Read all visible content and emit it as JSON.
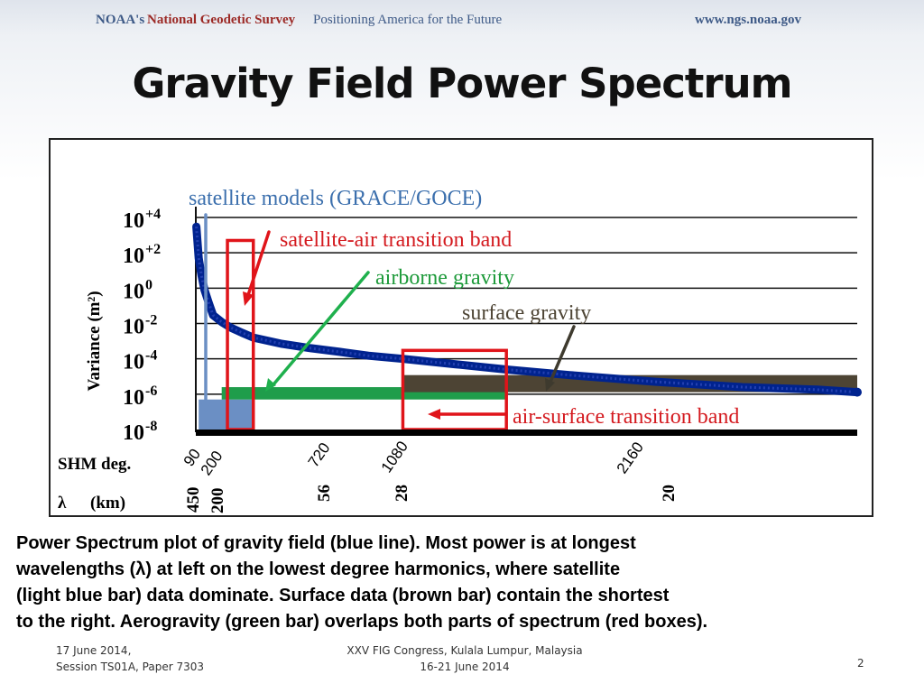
{
  "header": {
    "org": "NOAA's",
    "survey": "National Geodetic Survey",
    "tagline": "Positioning America for the Future",
    "url": "www.ngs.noaa.gov"
  },
  "title": "Gravity Field Power Spectrum",
  "chart_data": {
    "type": "line",
    "title": "",
    "ylabel": "Variance (m²)",
    "yscale": "log",
    "ylim": [
      1e-08,
      10000.0
    ],
    "y_ticks": [
      {
        "base": "10",
        "exp": "+4"
      },
      {
        "base": "10",
        "exp": "+2"
      },
      {
        "base": "10",
        "exp": "0"
      },
      {
        "base": "10",
        "exp": "-2"
      },
      {
        "base": "10",
        "exp": "-4"
      },
      {
        "base": "10",
        "exp": "-6"
      },
      {
        "base": "10",
        "exp": "-8"
      }
    ],
    "xlim": [
      0,
      2300
    ],
    "x_axis_label": "SHM deg.",
    "x_ticks": [
      "90",
      "200",
      "720",
      "1080",
      "2160"
    ],
    "lambda_label": "λ",
    "lambda_unit": "(km)",
    "lambda_ticks": [
      "450",
      "200",
      "56",
      "28",
      "20"
    ],
    "grid": true,
    "series": [
      {
        "color": "#00238f",
        "x": [
          2,
          10,
          20,
          30,
          45,
          60,
          90,
          120,
          160,
          200,
          300,
          400,
          500,
          600,
          720,
          900,
          1080,
          1300,
          1600,
          1900,
          2160,
          2300
        ],
        "y": [
          3000,
          50,
          5,
          0.8,
          0.15,
          0.03,
          0.012,
          0.006,
          0.003,
          0.0016,
          0.0007,
          0.0004,
          0.00025,
          0.00015,
          0.0001,
          5e-05,
          2.5e-05,
          1.2e-05,
          5e-06,
          2.5e-06,
          1.8e-06,
          1.3e-06
        ]
      }
    ],
    "bands": [
      {
        "name": "satellite",
        "color": "#6b8fc4",
        "x_start": 10,
        "x_end": 200,
        "y_low": 1e-08,
        "y_high": 5e-07
      },
      {
        "name": "airborne",
        "color": "#1f9d4b",
        "x_start": 90,
        "x_end": 1080,
        "y_low": 5e-07,
        "y_high": 2.5e-06
      },
      {
        "name": "surface",
        "color": "#4d4434",
        "x_start": 720,
        "x_end": 2300,
        "y_low": 1.3e-06,
        "y_high": 1.2e-05
      }
    ],
    "boxes": [
      {
        "color": "#e0141a",
        "x_start": 110,
        "x_end": 200,
        "y_low": 1e-08,
        "y_high": 500
      },
      {
        "color": "#e0141a",
        "x_start": 720,
        "x_end": 1080,
        "y_low": 1e-08,
        "y_high": 0.0003
      }
    ],
    "annotations": {
      "satellite": {
        "text": "satellite models (GRACE/GOCE)",
        "color": "#3b6fad"
      },
      "transition1": {
        "text": "satellite-air transition band",
        "color": "#d41a1f"
      },
      "airborne": {
        "text": "airborne gravity",
        "color": "#1d9a3a"
      },
      "surface": {
        "text": "surface gravity",
        "color": "#4d4434"
      },
      "transition2": {
        "text": "air-surface transition band",
        "color": "#d41a1f"
      }
    }
  },
  "caption": [
    "Power Spectrum plot of gravity field  (blue line). Most power is at longest",
    "wavelengths (λ) at left on the lowest degree harmonics, where satellite",
    "(light blue bar) data dominate. Surface data (brown bar) contain the shortest",
    "to the right. Aerogravity (green bar) overlaps both parts of spectrum (red boxes)."
  ],
  "footer": {
    "date": "17 June 2014,",
    "session": "Session TS01A, Paper 7303",
    "congress": "XXV FIG Congress, Kulala Lumpur, Malaysia",
    "dates": "16-21 June 2014",
    "page": "2"
  }
}
